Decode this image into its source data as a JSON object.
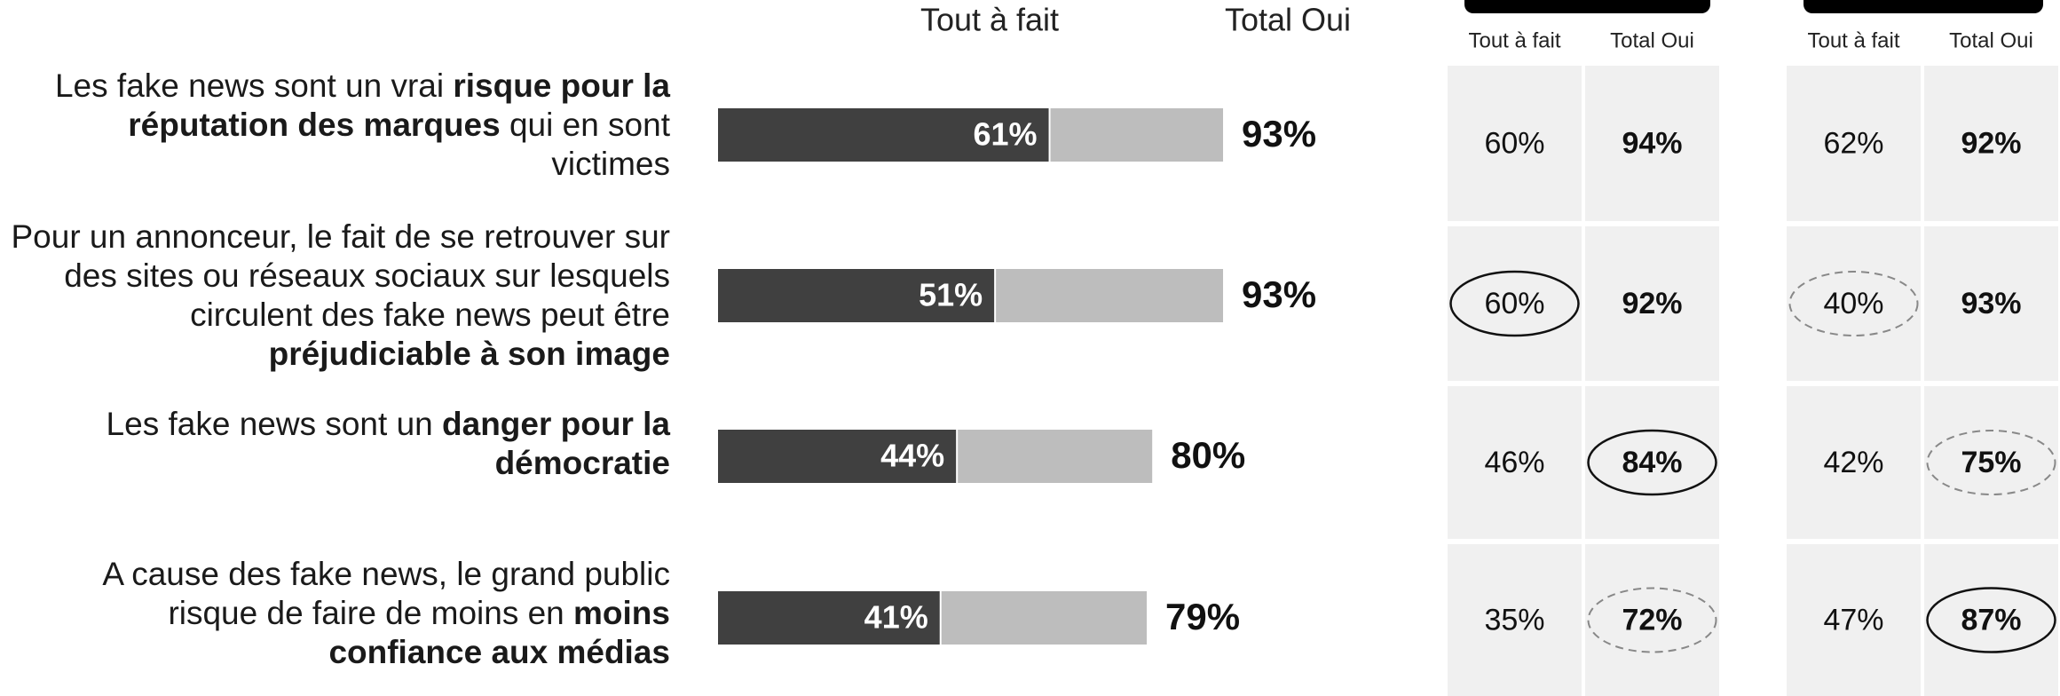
{
  "chart_data": {
    "type": "bar",
    "categories": [
      "Les fake news sont un vrai risque pour la réputation des marques qui en sont victimes",
      "Pour un annonceur, le fait de se retrouver sur des sites ou réseaux sociaux sur lesquels circulent des fake news peut être préjudiciable à son image",
      "Les fake news sont un danger pour la démocratie",
      "A cause des fake news, le grand public risque de faire de moins en moins confiance aux médias"
    ],
    "emphasis": [
      "risque pour la réputation des marques",
      "préjudiciable à son image",
      "danger pour la démocratie",
      "moins confiance aux médias"
    ],
    "series": [
      {
        "name": "Tout à fait",
        "color": "#404040",
        "values": [
          61,
          51,
          44,
          41
        ],
        "value_labels": [
          "61%",
          "51%",
          "44%",
          "41%"
        ]
      },
      {
        "name": "Total Oui",
        "color": "#bdbdbd",
        "values": [
          93,
          93,
          80,
          79
        ],
        "value_labels": [
          "93%",
          "93%",
          "80%",
          "79%"
        ]
      }
    ],
    "xlim": [
      0,
      100
    ]
  },
  "tables": [
    {
      "columns": [
        "Tout à fait",
        "Total Oui"
      ],
      "rows": [
        [
          "60%",
          "94%"
        ],
        [
          "60%",
          "92%"
        ],
        [
          "46%",
          "84%"
        ],
        [
          "35%",
          "72%"
        ]
      ],
      "circles": [
        [
          null,
          null
        ],
        [
          "solid",
          null
        ],
        [
          null,
          "solid"
        ],
        [
          null,
          "dashed"
        ]
      ]
    },
    {
      "columns": [
        "Tout à fait",
        "Total Oui"
      ],
      "rows": [
        [
          "62%",
          "92%"
        ],
        [
          "40%",
          "93%"
        ],
        [
          "42%",
          "75%"
        ],
        [
          "47%",
          "87%"
        ]
      ],
      "circles": [
        [
          null,
          null
        ],
        [
          "dashed",
          null
        ],
        [
          null,
          "dashed"
        ],
        [
          null,
          "solid"
        ]
      ]
    }
  ]
}
